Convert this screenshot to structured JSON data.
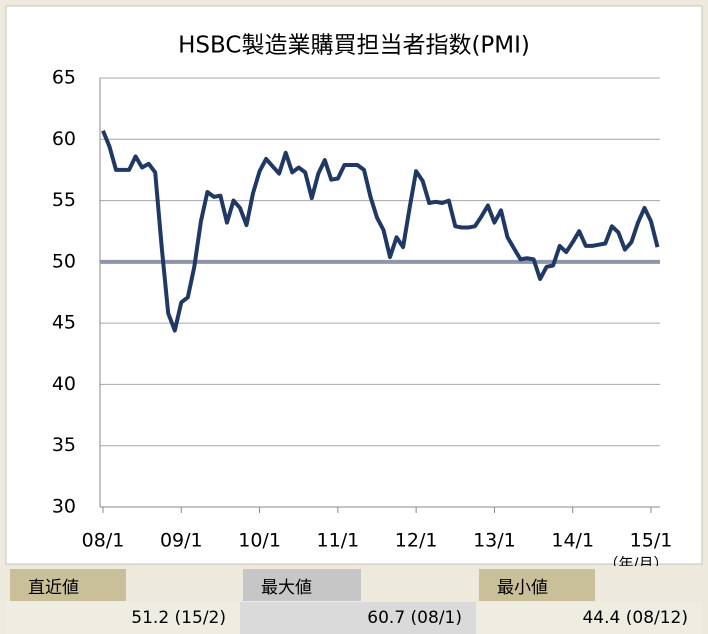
{
  "chart_data": {
    "type": "line",
    "title": "HSBC製造業購買担当者指数(PMI)",
    "x_unit_label": "（年/月）",
    "categories": [
      "08/1",
      null,
      null,
      null,
      null,
      null,
      null,
      null,
      null,
      null,
      null,
      null,
      "09/1",
      null,
      null,
      null,
      null,
      null,
      null,
      null,
      null,
      null,
      null,
      null,
      "10/1",
      null,
      null,
      null,
      null,
      null,
      null,
      null,
      null,
      null,
      null,
      null,
      "11/1",
      null,
      null,
      null,
      null,
      null,
      null,
      null,
      null,
      null,
      null,
      null,
      "12/1",
      null,
      null,
      null,
      null,
      null,
      null,
      null,
      null,
      null,
      null,
      null,
      "13/1",
      null,
      null,
      null,
      null,
      null,
      null,
      null,
      null,
      null,
      null,
      null,
      "14/1",
      null,
      null,
      null,
      null,
      null,
      null,
      null,
      null,
      null,
      null,
      null,
      "15/1",
      null
    ],
    "series": [
      {
        "name": "PMI",
        "color": "#1f3864",
        "values": [
          60.7,
          59.4,
          57.5,
          57.5,
          57.5,
          58.6,
          57.7,
          58.0,
          57.3,
          51.2,
          45.8,
          44.4,
          46.7,
          47.1,
          49.6,
          53.3,
          55.7,
          55.3,
          55.4,
          53.2,
          55.0,
          54.4,
          53.0,
          55.6,
          57.4,
          58.4,
          57.8,
          57.2,
          58.9,
          57.3,
          57.7,
          57.3,
          55.2,
          57.2,
          58.3,
          56.7,
          56.8,
          57.9,
          57.9,
          57.9,
          57.5,
          55.3,
          53.6,
          52.6,
          50.4,
          52.0,
          51.2,
          54.4,
          57.4,
          56.6,
          54.8,
          54.9,
          54.8,
          55.0,
          52.9,
          52.8,
          52.8,
          52.9,
          53.7,
          54.6,
          53.2,
          54.2,
          52.0,
          51.1,
          50.2,
          50.3,
          50.2,
          48.6,
          49.6,
          49.7,
          51.3,
          50.8,
          51.6,
          52.5,
          51.3,
          51.3,
          51.4,
          51.5,
          52.9,
          52.4,
          51.0,
          51.6,
          53.2,
          54.4,
          53.3,
          51.2
        ]
      }
    ],
    "reference_line": {
      "value": 50,
      "color": "#8c96a8"
    },
    "ylim": [
      30,
      65
    ],
    "yticks": [
      30,
      35,
      40,
      45,
      50,
      55,
      60,
      65
    ],
    "grid": true
  },
  "summary": [
    {
      "label": "直近値",
      "value": "51.2 (15/2)"
    },
    {
      "label": "最大値",
      "value": "60.7 (08/1)"
    },
    {
      "label": "最小値",
      "value": "44.4 (08/12)"
    }
  ]
}
